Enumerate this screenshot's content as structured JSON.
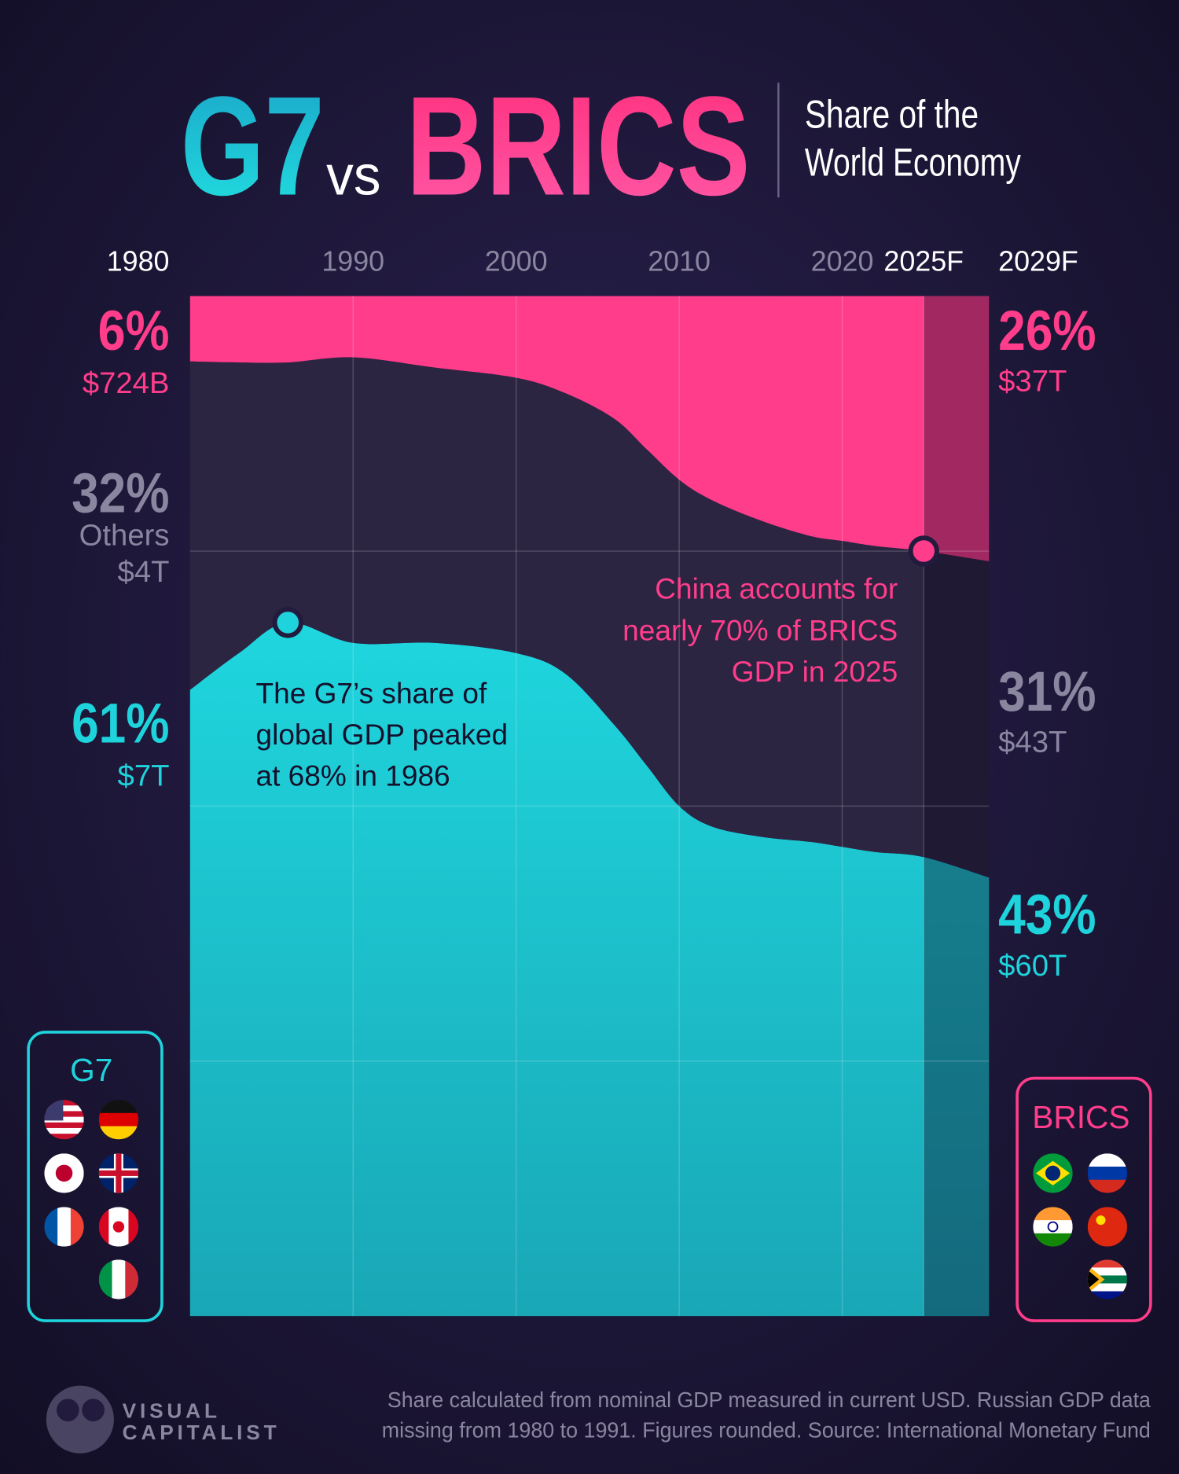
{
  "title": {
    "g7": "G7",
    "vs": "vs",
    "brics": "BRICS"
  },
  "subtitle": [
    "Share of the",
    "World Economy"
  ],
  "chart_data": {
    "type": "area",
    "stacked": true,
    "x": [
      1980,
      1983,
      1986,
      1990,
      1995,
      2000,
      2003,
      2006,
      2008,
      2010,
      2012,
      2015,
      2018,
      2020,
      2022,
      2025,
      2029
    ],
    "xlim": [
      1980,
      2029
    ],
    "xticks": [
      1980,
      1990,
      2000,
      2010,
      2020,
      {
        "value": 2025,
        "label": "2025F"
      },
      {
        "value": 2029,
        "label": "2029F"
      }
    ],
    "ylim": [
      0,
      100
    ],
    "yticks": [
      0,
      25,
      50,
      75,
      100
    ],
    "grid": true,
    "forecast_from": 2025,
    "series": [
      {
        "name": "G7",
        "color": "#1ed3dc",
        "values": [
          61.4,
          65,
          68,
          66,
          66,
          65,
          63,
          58,
          54,
          50,
          48,
          47,
          46.5,
          46,
          45.5,
          45,
          43
        ],
        "value_labels": [
          "61%",
          null,
          null,
          null,
          null,
          null,
          null,
          null,
          null,
          null,
          null,
          null,
          null,
          null,
          null,
          null,
          "43%"
        ],
        "gdp_labels": [
          "$7T",
          null,
          null,
          null,
          null,
          null,
          null,
          null,
          null,
          null,
          null,
          null,
          null,
          null,
          null,
          null,
          "$60T"
        ]
      },
      {
        "name": "Others",
        "color": "#2c2542",
        "values": [
          32.2,
          28.5,
          25.5,
          28,
          27,
          27,
          27.5,
          30,
          31,
          32,
          32,
          31,
          30,
          30,
          30,
          30,
          31
        ],
        "value_labels": [
          "32%",
          null,
          null,
          null,
          null,
          null,
          null,
          null,
          null,
          null,
          null,
          null,
          null,
          null,
          null,
          null,
          "31%"
        ],
        "gdp_labels": [
          "$4T",
          null,
          null,
          null,
          null,
          null,
          null,
          null,
          null,
          null,
          null,
          null,
          null,
          null,
          null,
          null,
          "$43T"
        ]
      },
      {
        "name": "BRICS",
        "color": "#ff3d8b",
        "values": [
          6.4,
          6.5,
          6.5,
          6,
          7,
          8,
          9.5,
          12,
          15,
          18,
          20,
          22,
          23.5,
          24,
          24.5,
          25,
          26
        ],
        "value_labels": [
          "6%",
          null,
          null,
          null,
          null,
          null,
          null,
          null,
          null,
          null,
          null,
          null,
          null,
          null,
          null,
          null,
          "26%"
        ],
        "gdp_labels": [
          "$724B",
          null,
          null,
          null,
          null,
          null,
          null,
          null,
          null,
          null,
          null,
          null,
          null,
          null,
          null,
          null,
          "$37T"
        ]
      }
    ],
    "annotations": [
      {
        "text": [
          "The G7’s share of",
          "global GDP peaked",
          "at 68% in 1986"
        ],
        "x": 1986,
        "y": 68
      },
      {
        "text": [
          "China accounts for",
          "nearly 70% of BRICS",
          "GDP in 2025"
        ],
        "x": 2025,
        "y": 75
      }
    ]
  },
  "footnote": [
    "Share calculated from nominal GDP measured in current USD. Russian GDP data",
    "missing from 1980 to 1991. Figures rounded. Source: International Monetary Fund"
  ],
  "logo": [
    "VISUAL",
    "CAPITALIST"
  ]
}
